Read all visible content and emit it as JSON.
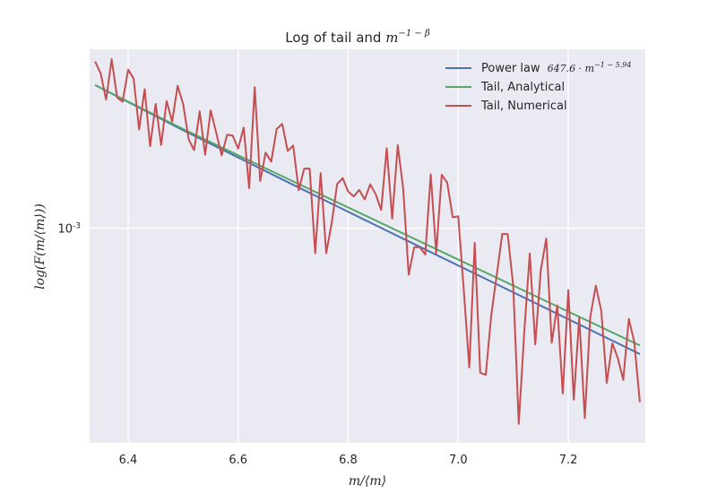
{
  "chart_data": {
    "type": "line",
    "title": "Log of tail and",
    "title_math": {
      "base": "m",
      "exponent": "−1 − β"
    },
    "xlabel": "m/⟨m⟩",
    "ylabel": "log(F(m/⟨m⟩))",
    "x_ticks": [
      "6.4",
      "6.6",
      "6.8",
      "7.0",
      "7.2"
    ],
    "x_tick_values": [
      6.4,
      6.6,
      6.8,
      7.0,
      7.2
    ],
    "y_tick_values": [
      0.001
    ],
    "y_tick_label": {
      "base": "10",
      "exponent": "-3"
    },
    "xlim": [
      6.33,
      7.34
    ],
    "ylim": [
      0.00063,
      0.00147
    ],
    "log_y": true,
    "grid": true,
    "legend_position": "top-right",
    "legend": {
      "power_law": "Power law",
      "power_law_formula": "647.6 · m",
      "power_law_exponent": "−1 − 5.94",
      "tail_analytical": "Tail, Analytical",
      "tail_numerical": "Tail, Numerical"
    },
    "colors": {
      "background": "#eaeaf2",
      "grid": "#ffffff",
      "power_law": "#4c72b0",
      "tail_analytical": "#55a868",
      "tail_numerical": "#c44e52"
    },
    "series": [
      {
        "key": "power_law",
        "x": [
          6.34,
          6.5,
          6.7,
          6.9,
          7.1,
          7.33
        ],
        "y": [
          0.001361,
          0.001235,
          0.001098,
          0.0009777,
          0.0008711,
          0.0007627
        ]
      },
      {
        "key": "tail_analytical",
        "x": [
          6.34,
          6.5,
          6.7,
          6.9,
          7.1,
          7.33
        ],
        "y": [
          0.001361,
          0.001238,
          0.001106,
          0.0009887,
          0.0008839,
          0.0007769
        ]
      },
      {
        "key": "tail_numerical",
        "x": [
          6.34,
          6.35,
          6.36,
          6.37,
          6.38,
          6.39,
          6.4,
          6.41,
          6.42,
          6.43,
          6.44,
          6.45,
          6.46,
          6.47,
          6.48,
          6.49,
          6.5,
          6.51,
          6.52,
          6.53,
          6.54,
          6.55,
          6.56,
          6.57,
          6.58,
          6.59,
          6.6,
          6.61,
          6.62,
          6.63,
          6.64,
          6.65,
          6.66,
          6.67,
          6.68,
          6.69,
          6.7,
          6.71,
          6.72,
          6.73,
          6.74,
          6.75,
          6.76,
          6.77,
          6.78,
          6.79,
          6.8,
          6.81,
          6.82,
          6.83,
          6.84,
          6.85,
          6.86,
          6.87,
          6.88,
          6.89,
          6.9,
          6.91,
          6.92,
          6.93,
          6.94,
          6.95,
          6.96,
          6.97,
          6.98,
          6.99,
          7.0,
          7.01,
          7.02,
          7.03,
          7.04,
          7.05,
          7.06,
          7.07,
          7.08,
          7.09,
          7.1,
          7.11,
          7.12,
          7.13,
          7.14,
          7.15,
          7.16,
          7.17,
          7.18,
          7.19,
          7.2,
          7.21,
          7.22,
          7.23,
          7.24,
          7.25,
          7.26,
          7.27,
          7.28,
          7.29,
          7.3,
          7.31,
          7.32,
          7.33
        ],
        "y": [
          0.001432,
          0.001396,
          0.001319,
          0.001439,
          0.001325,
          0.001313,
          0.001407,
          0.00138,
          0.001237,
          0.001349,
          0.001193,
          0.001307,
          0.001196,
          0.001315,
          0.001258,
          0.001359,
          0.001306,
          0.001211,
          0.001183,
          0.001286,
          0.001171,
          0.001289,
          0.001229,
          0.00117,
          0.001223,
          0.001221,
          0.001187,
          0.001242,
          0.00109,
          0.001355,
          0.001107,
          0.001177,
          0.001154,
          0.001238,
          0.001252,
          0.001181,
          0.001195,
          0.001085,
          0.001137,
          0.001137,
          0.0009475,
          0.001126,
          0.0009476,
          0.001011,
          0.0011,
          0.001114,
          0.001082,
          0.001071,
          0.001086,
          0.001064,
          0.001099,
          0.001076,
          0.00104,
          0.001188,
          0.001021,
          0.001196,
          0.001088,
          0.0009049,
          0.0009601,
          0.00096,
          0.0009451,
          0.001123,
          0.0009478,
          0.001122,
          0.001103,
          0.001024,
          0.001026,
          0.000877,
          0.0007409,
          0.000969,
          0.0007326,
          0.0007293,
          0.0008291,
          0.0009048,
          0.0009878,
          0.0009871,
          0.0008819,
          0.0006562,
          0.0008006,
          0.0009471,
          0.0007785,
          0.0009138,
          0.0009781,
          0.0007812,
          0.0008467,
          0.0007004,
          0.0008754,
          0.0006914,
          0.0008251,
          0.0006644,
          0.0008262,
          0.0008834,
          0.0008369,
          0.0007168,
          0.0007805,
          0.0007562,
          0.0007214,
          0.0008228,
          0.0007828,
          0.0006876
        ]
      }
    ]
  }
}
